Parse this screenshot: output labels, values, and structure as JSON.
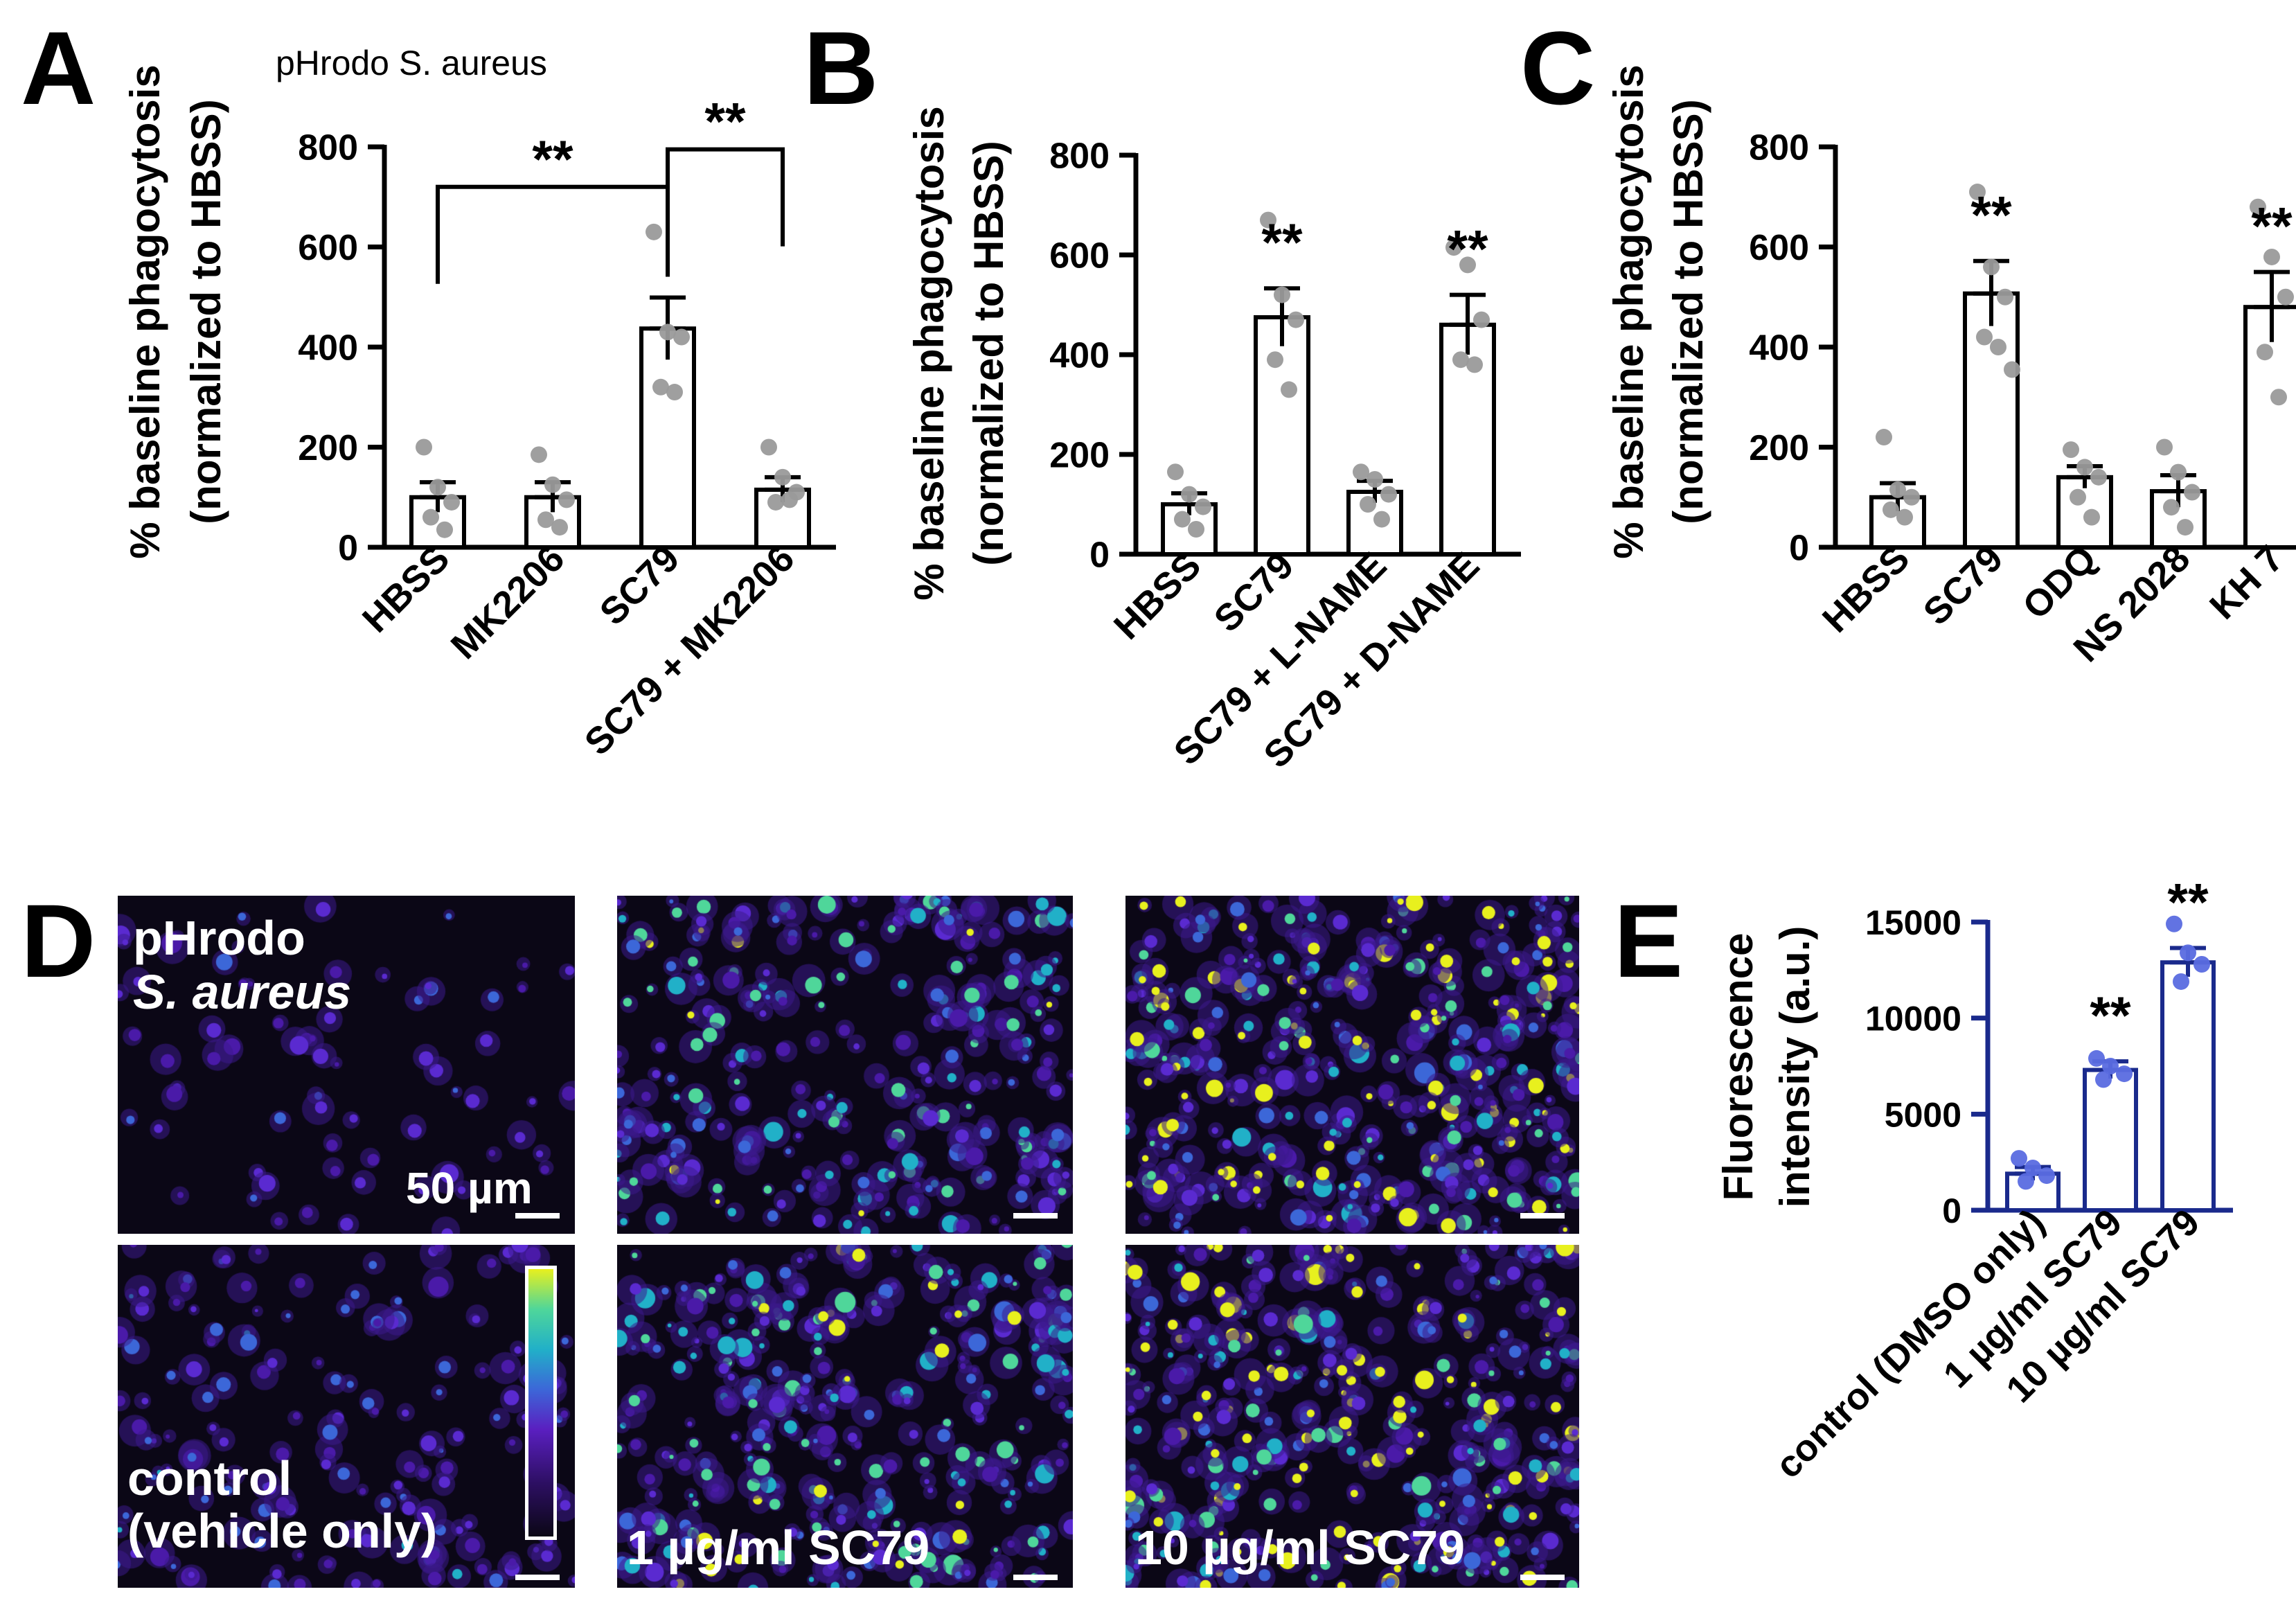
{
  "panels": {
    "A": {
      "letter": "A",
      "annotation": "pHrodo S. aureus"
    },
    "B": {
      "letter": "B"
    },
    "C": {
      "letter": "C"
    },
    "D": {
      "letter": "D"
    },
    "E": {
      "letter": "E"
    }
  },
  "microscopy": {
    "label_line1": "pHrodo",
    "label_line2": "S. aureus",
    "scale_label": "50 µm",
    "images": [
      {
        "id": "control-top",
        "label": ""
      },
      {
        "id": "sc79-1-top",
        "label": ""
      },
      {
        "id": "sc79-10-top",
        "label": ""
      },
      {
        "id": "control-bottom",
        "label": "control\n(vehicle only)"
      },
      {
        "id": "sc79-1-bottom",
        "label": "1 µg/ml SC79"
      },
      {
        "id": "sc79-10-bottom",
        "label": "10 µg/ml SC79"
      }
    ]
  },
  "chart_data": [
    {
      "panel": "A",
      "type": "bar",
      "ylabel": [
        "% baseline phagocytosis",
        "(normalized to HBSS)"
      ],
      "ylim": [
        0,
        800
      ],
      "yticks": [
        0,
        200,
        400,
        600,
        800
      ],
      "categories": [
        "HBSS",
        "MK2206",
        "SC79",
        "SC79 + MK2206"
      ],
      "values": [
        100,
        100,
        437,
        115
      ],
      "errors": [
        30,
        30,
        62,
        25
      ],
      "points": [
        [
          200,
          120,
          90,
          60,
          35
        ],
        [
          185,
          125,
          95,
          55,
          40
        ],
        [
          630,
          430,
          420,
          320,
          310
        ],
        [
          200,
          140,
          110,
          90,
          95
        ]
      ],
      "brackets": [
        {
          "from": 0,
          "to": 2,
          "y": 720,
          "label": "**"
        },
        {
          "from": 2,
          "to": 3,
          "y": 795,
          "label": "**"
        }
      ],
      "stars": [
        "",
        "",
        "",
        ""
      ],
      "color": "#000000",
      "point_color": "#9a9a9a"
    },
    {
      "panel": "B",
      "type": "bar",
      "ylabel": [
        "% baseline phagocytosis",
        "(normalized to HBSS)"
      ],
      "ylim": [
        0,
        800
      ],
      "yticks": [
        0,
        200,
        400,
        600,
        800
      ],
      "categories": [
        "HBSS",
        "SC79",
        "SC79 + L-NAME",
        "SC79 + D-NAME"
      ],
      "values": [
        100,
        475,
        125,
        460
      ],
      "errors": [
        22,
        58,
        22,
        60
      ],
      "points": [
        [
          165,
          120,
          95,
          70,
          50
        ],
        [
          670,
          520,
          470,
          390,
          330
        ],
        [
          165,
          150,
          120,
          100,
          70
        ],
        [
          615,
          580,
          470,
          390,
          380
        ]
      ],
      "stars": [
        "",
        "**",
        "",
        "**"
      ],
      "color": "#000000",
      "point_color": "#9a9a9a"
    },
    {
      "panel": "C",
      "type": "bar",
      "ylabel": [
        "% baseline phagocytosis",
        "(normalized to HBSS)"
      ],
      "ylim": [
        0,
        800
      ],
      "yticks": [
        0,
        200,
        400,
        600,
        800
      ],
      "categories": [
        "HBSS",
        "SC79",
        "ODQ",
        "NS 2028",
        "KH 7"
      ],
      "values": [
        100,
        507,
        140,
        112,
        480
      ],
      "errors": [
        28,
        65,
        22,
        32,
        70
      ],
      "points": [
        [
          220,
          115,
          100,
          75,
          60
        ],
        [
          710,
          560,
          500,
          420,
          400,
          355
        ],
        [
          195,
          160,
          140,
          100,
          60
        ],
        [
          200,
          150,
          110,
          80,
          40
        ],
        [
          680,
          580,
          500,
          390,
          300
        ]
      ],
      "stars": [
        "",
        "**",
        "",
        "",
        "**"
      ],
      "color": "#000000",
      "point_color": "#9a9a9a"
    },
    {
      "panel": "E",
      "type": "bar",
      "ylabel": [
        "Fluorescence",
        "intensity (a.u.)"
      ],
      "ylim": [
        0,
        15000
      ],
      "yticks": [
        0,
        5000,
        10000,
        15000
      ],
      "categories": [
        "control (DMSO only)",
        "1 µg/ml SC79",
        "10 µg/ml SC79"
      ],
      "values": [
        1900,
        7300,
        12900
      ],
      "errors": [
        350,
        450,
        750
      ],
      "points": [
        [
          2700,
          2200,
          1800,
          1500
        ],
        [
          7900,
          7500,
          7100,
          6800
        ],
        [
          14900,
          13400,
          12800,
          11900
        ]
      ],
      "stars": [
        "",
        "**",
        "**"
      ],
      "color": "#1a2a8c",
      "point_color": "#5a6be0"
    }
  ]
}
